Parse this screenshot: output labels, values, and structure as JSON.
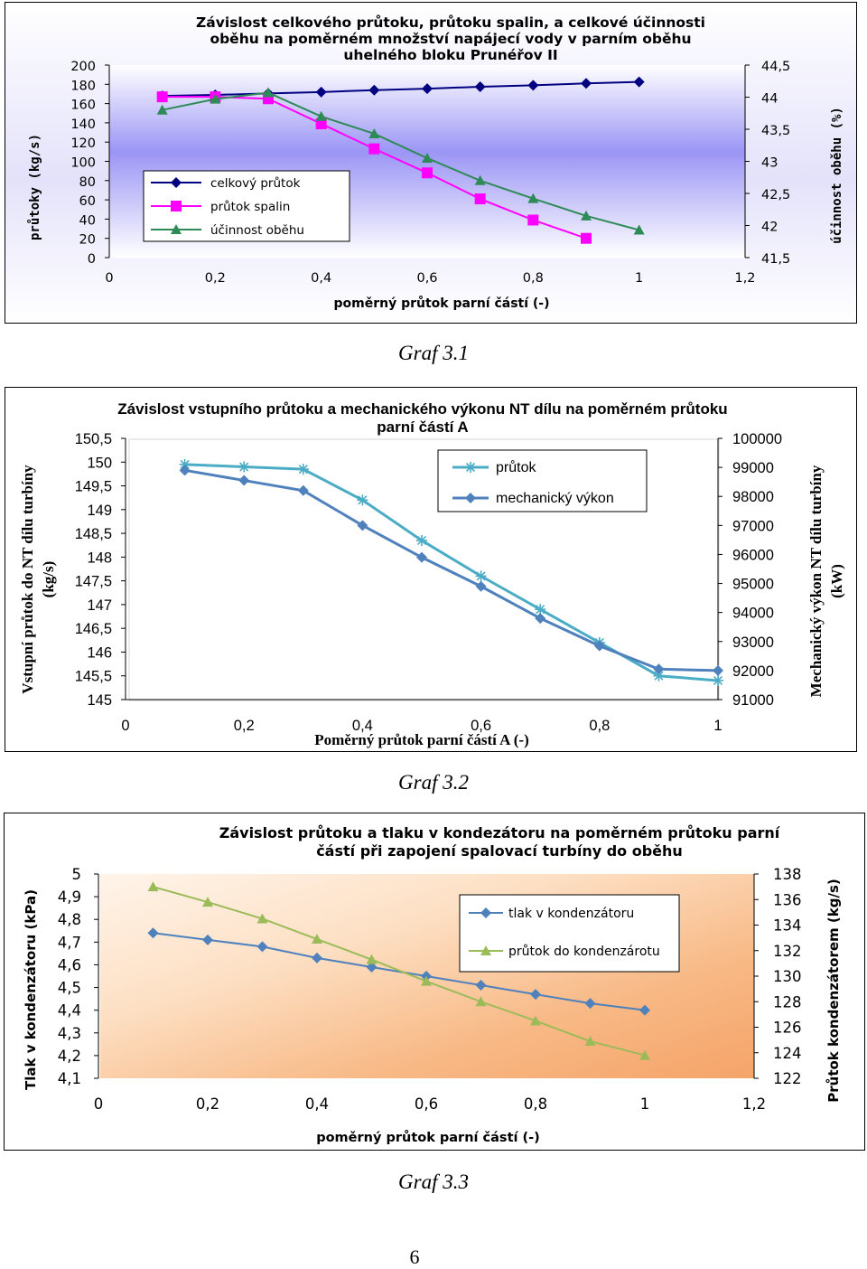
{
  "chart_data": [
    {
      "type": "line",
      "title_lines": [
        "Závislost celkového průtoku, průtoku spalin, a celkové účinnosti",
        "oběhu na poměrném množství napájecí vody v parním oběhu",
        "uhelného bloku Prunéřov II"
      ],
      "xlabel": "poměrný průtok parní částí (-)",
      "ylabel": "průtoky (kg/s)",
      "y2label": "účinnost oběhu (%)",
      "xlim": [
        0,
        1.2
      ],
      "ylim": [
        0,
        200
      ],
      "y2lim": [
        41.5,
        44.5
      ],
      "xticks": [
        "0",
        "0,2",
        "0,4",
        "0,6",
        "0,8",
        "1",
        "1,2"
      ],
      "yticks": [
        "0",
        "20",
        "40",
        "60",
        "80",
        "100",
        "120",
        "140",
        "160",
        "180",
        "200"
      ],
      "y2ticks": [
        "41,5",
        "42",
        "42,5",
        "43",
        "43,5",
        "44",
        "44,5"
      ],
      "grid": false,
      "legend": "lower-left",
      "series": [
        {
          "name": "celkový průtok",
          "axis": "left",
          "color": "#000080",
          "marker": "diamond",
          "x": [
            0.1,
            0.2,
            0.3,
            0.4,
            0.5,
            0.6,
            0.7,
            0.8,
            0.9,
            1.0
          ],
          "y": [
            168,
            169,
            170.5,
            172,
            174,
            175.5,
            177.5,
            179,
            181,
            182.5
          ]
        },
        {
          "name": "průtok spalin",
          "axis": "left",
          "color": "#ff00ff",
          "marker": "square",
          "x": [
            0.1,
            0.2,
            0.3,
            0.4,
            0.5,
            0.6,
            0.7,
            0.8,
            0.9
          ],
          "y": [
            167,
            167,
            165,
            139,
            113,
            88,
            61,
            39,
            20
          ]
        },
        {
          "name": "účinnost oběhu",
          "axis": "right",
          "color": "#2e8b57",
          "marker": "triangle",
          "x": [
            0.1,
            0.2,
            0.3,
            0.4,
            0.5,
            0.6,
            0.7,
            0.8,
            0.9,
            1.0
          ],
          "y": [
            43.8,
            43.97,
            44.07,
            43.7,
            43.43,
            43.05,
            42.7,
            42.42,
            42.15,
            41.93
          ]
        }
      ]
    },
    {
      "type": "line",
      "title_lines": [
        "Závislost vstupního průtoku a mechanického výkonu NT dílu na poměrném průtoku",
        "parní částí A"
      ],
      "xlabel": "Poměrný průtok parní částí A (-)",
      "ylabel_lines": [
        "Vstupní průtok do NT dílu turbíny",
        "(kg/s)"
      ],
      "y2label_lines": [
        "Mechanický výkon NT dílu turbíny",
        "(kW)"
      ],
      "xlim": [
        0,
        1
      ],
      "ylim": [
        145,
        150.5
      ],
      "y2lim": [
        91000,
        100000
      ],
      "xticks": [
        "0",
        "0,2",
        "0,4",
        "0,6",
        "0,8",
        "1"
      ],
      "yticks": [
        "145",
        "145,5",
        "146",
        "146,5",
        "147",
        "147,5",
        "148",
        "148,5",
        "149",
        "149,5",
        "150",
        "150,5"
      ],
      "y2ticks": [
        "91000",
        "92000",
        "93000",
        "94000",
        "95000",
        "96000",
        "97000",
        "98000",
        "99000",
        "100000"
      ],
      "grid": false,
      "legend": "top-right",
      "series": [
        {
          "name": "průtok",
          "axis": "left",
          "color": "#4bacc6",
          "marker": "star",
          "x": [
            0.1,
            0.2,
            0.3,
            0.4,
            0.5,
            0.6,
            0.7,
            0.8,
            0.9,
            1.0
          ],
          "y": [
            149.95,
            149.9,
            149.85,
            149.2,
            148.35,
            147.6,
            146.9,
            146.2,
            145.5,
            145.4
          ]
        },
        {
          "name": "mechanický výkon",
          "axis": "right",
          "color": "#4f81bd",
          "marker": "diamond",
          "x": [
            0.1,
            0.2,
            0.3,
            0.4,
            0.5,
            0.6,
            0.7,
            0.8,
            0.9,
            1.0
          ],
          "y": [
            98900,
            98550,
            98200,
            97000,
            95900,
            94900,
            93800,
            92850,
            92050,
            92000
          ]
        }
      ]
    },
    {
      "type": "line",
      "title_lines": [
        "Závislost průtoku a tlaku v kondezátoru na poměrném průtoku parní",
        "částí při zapojení spalovací turbíny do oběhu"
      ],
      "xlabel": "poměrný průtok parní částí (-)",
      "ylabel": "Tlak v kondenzátoru (kPa)",
      "y2label": "Průtok kondenzátorem (kg/s)",
      "xlim": [
        0,
        1.2
      ],
      "ylim": [
        4.1,
        5.0
      ],
      "y2lim": [
        122,
        138
      ],
      "xticks": [
        "0",
        "0,2",
        "0,4",
        "0,6",
        "0,8",
        "1",
        "1,2"
      ],
      "yticks": [
        "4,1",
        "4,2",
        "4,3",
        "4,4",
        "4,5",
        "4,6",
        "4,7",
        "4,8",
        "4,9",
        "5"
      ],
      "y2ticks": [
        "122",
        "124",
        "126",
        "128",
        "130",
        "132",
        "134",
        "136",
        "138"
      ],
      "grid": false,
      "legend": "top-right",
      "series": [
        {
          "name": "tlak v kondenzátoru",
          "axis": "left",
          "color": "#4f81bd",
          "marker": "diamond",
          "x": [
            0.1,
            0.2,
            0.3,
            0.4,
            0.5,
            0.6,
            0.7,
            0.8,
            0.9,
            1.0
          ],
          "y": [
            4.74,
            4.71,
            4.68,
            4.63,
            4.59,
            4.55,
            4.51,
            4.47,
            4.43,
            4.4
          ]
        },
        {
          "name": "průtok do kondenzárotu",
          "axis": "right",
          "color": "#9bbb59",
          "marker": "triangle",
          "x": [
            0.1,
            0.2,
            0.3,
            0.4,
            0.5,
            0.6,
            0.7,
            0.8,
            0.9,
            1.0
          ],
          "y": [
            137,
            135.8,
            134.5,
            132.9,
            131.3,
            129.6,
            128.0,
            126.5,
            124.9,
            123.8
          ]
        }
      ]
    }
  ],
  "captions": [
    "Graf 3.1",
    "Graf 3.2",
    "Graf 3.3"
  ],
  "page_number": "6"
}
